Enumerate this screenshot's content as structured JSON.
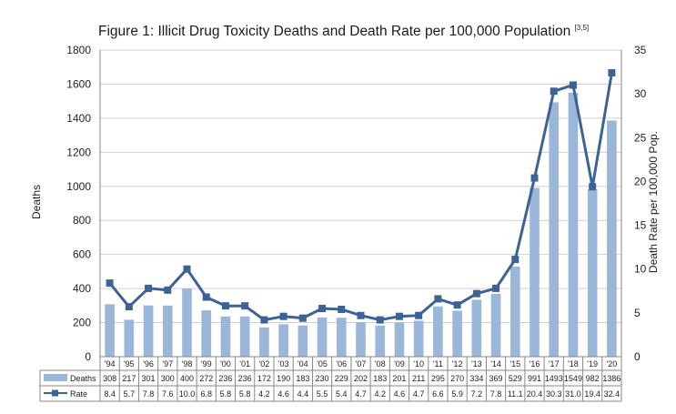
{
  "title": "Figure 1: Illicit Drug Toxicity Deaths and Death Rate per 100,000 Population",
  "title_ref": "[3,5]",
  "chart_data": {
    "type": "bar",
    "categories": [
      "'94",
      "'95",
      "'96",
      "'97",
      "'98",
      "'99",
      "'00",
      "'01",
      "'02",
      "'03",
      "'04",
      "'05",
      "'06",
      "'07",
      "'08",
      "'09",
      "'10",
      "'11",
      "'12",
      "'13",
      "'14",
      "'15",
      "'16",
      "'17",
      "'18",
      "'19",
      "'20"
    ],
    "series": [
      {
        "name": "Deaths",
        "type": "bar",
        "axis": "left",
        "color": "#9ab7d9",
        "values": [
          308,
          217,
          301,
          300,
          400,
          272,
          236,
          236,
          172,
          190,
          183,
          230,
          229,
          202,
          183,
          201,
          211,
          295,
          270,
          334,
          369,
          529,
          991,
          1493,
          1549,
          982,
          1386
        ]
      },
      {
        "name": "Rate",
        "type": "line",
        "axis": "right",
        "color": "#3d6294",
        "values": [
          8.4,
          5.7,
          7.8,
          7.6,
          10.0,
          6.8,
          5.8,
          5.8,
          4.2,
          4.6,
          4.4,
          5.5,
          5.4,
          4.7,
          4.2,
          4.6,
          4.7,
          6.6,
          5.9,
          7.2,
          7.8,
          11.1,
          20.4,
          30.3,
          31.0,
          19.4,
          32.4
        ],
        "table_labels": [
          "8.4",
          "5.7",
          "7.8",
          "7.6",
          "10.0",
          "6.8",
          "5.8",
          "5.8",
          "4.2",
          "4.6",
          "4.4",
          "5.5",
          "5.4",
          "4.7",
          "4.2",
          "4.6",
          "4.7",
          "6.6",
          "5.9",
          "7.2",
          "7.8",
          "11.1",
          "20.4",
          "30.3",
          "31.0",
          "19.4",
          "32.4"
        ]
      }
    ],
    "ylabel": "Deaths",
    "y2label": "Death Rate per 100,000 Pop.",
    "ylim": [
      0,
      1800
    ],
    "y2lim": [
      0,
      35
    ],
    "yticks": [
      0,
      200,
      400,
      600,
      800,
      1000,
      1200,
      1400,
      1600,
      1800
    ],
    "y2ticks": [
      0,
      5,
      10,
      15,
      20,
      25,
      30,
      35
    ],
    "grid": "horizontal",
    "legend": "data-table"
  }
}
